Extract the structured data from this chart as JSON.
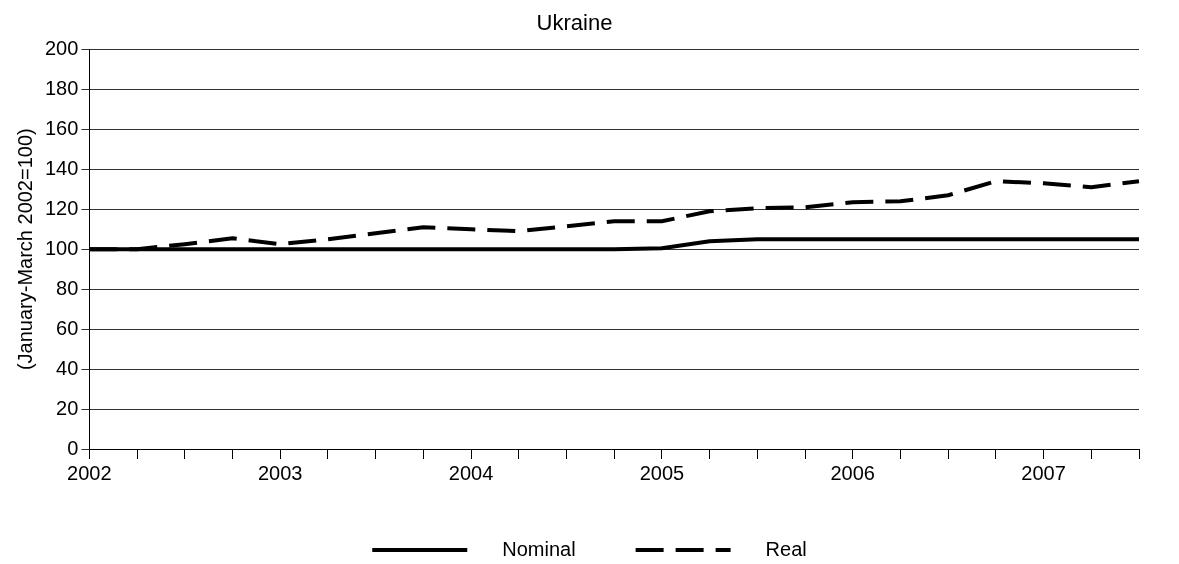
{
  "chart_data": {
    "type": "line",
    "title": "Ukraine",
    "ylabel": "(January-March 2002=100)",
    "categories": [
      "2002",
      null,
      null,
      null,
      "2003",
      null,
      null,
      null,
      "2004",
      null,
      null,
      null,
      "2005",
      null,
      null,
      null,
      "2006",
      null,
      null,
      null,
      "2007",
      null,
      null
    ],
    "series": [
      {
        "name": "Nominal",
        "color": "#000000",
        "line_style": "solid",
        "values": [
          100,
          100,
          100,
          100,
          100,
          100,
          100,
          100,
          100,
          100,
          100,
          100,
          100.5,
          104,
          105,
          105,
          105,
          105,
          105,
          105,
          105,
          105,
          105
        ]
      },
      {
        "name": "Real",
        "color": "#000000",
        "line_style": "dashed",
        "values": [
          100,
          100,
          102.5,
          105.5,
          102.5,
          105,
          108,
          111,
          110,
          109,
          111.5,
          114,
          114,
          119,
          120.5,
          121,
          123.5,
          124,
          127,
          134,
          133,
          131,
          134
        ]
      }
    ],
    "ylim": [
      0,
      200
    ],
    "yticks": [
      0,
      20,
      40,
      60,
      80,
      100,
      120,
      140,
      160,
      180,
      200
    ],
    "grid": "y",
    "legend": "bottom",
    "marker": "none"
  }
}
